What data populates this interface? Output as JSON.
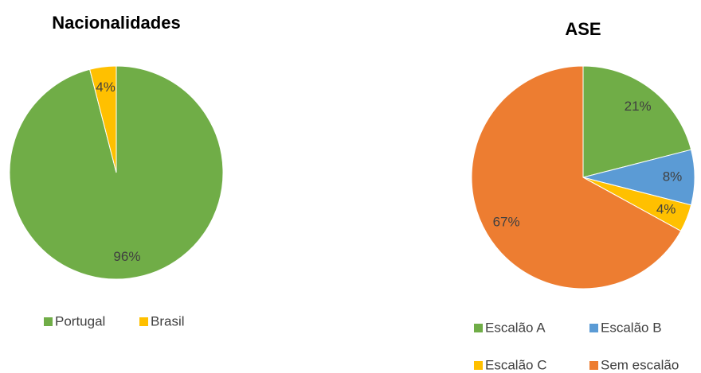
{
  "chart_data": [
    {
      "type": "pie",
      "title": "Nacionalidades",
      "categories": [
        "Portugal",
        "Brasil"
      ],
      "values": [
        96,
        4
      ],
      "value_labels": [
        "96%",
        "4%"
      ],
      "colors": [
        "#70ad47",
        "#ffc000"
      ]
    },
    {
      "type": "pie",
      "title": "ASE",
      "categories": [
        "Escalão A",
        "Escalão B",
        "Escalão C",
        "Sem escalão"
      ],
      "values": [
        21,
        8,
        4,
        67
      ],
      "value_labels": [
        "21%",
        "8%",
        "4%",
        "67%"
      ],
      "colors": [
        "#70ad47",
        "#5b9bd5",
        "#ffc000",
        "#ed7d31"
      ]
    }
  ]
}
